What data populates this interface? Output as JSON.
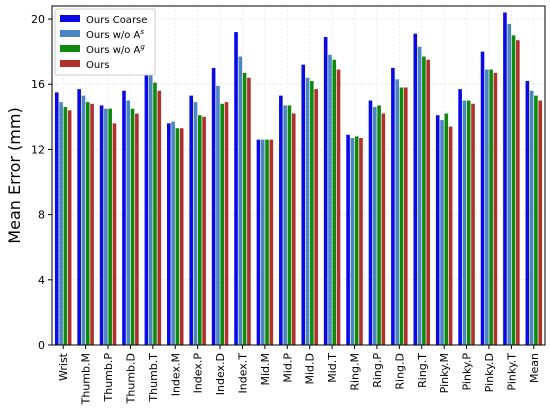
{
  "chart_data": {
    "type": "bar",
    "ylabel": "Mean Error (mm)",
    "xlabel": "",
    "ylim": [
      0,
      20.8
    ],
    "yticks": [
      0,
      4,
      8,
      12,
      16,
      20
    ],
    "grid": true,
    "legend_position": "top-left",
    "categories": [
      "Wrist",
      "Thumb.M",
      "Thumb.P",
      "Thumb.D",
      "Thumb.T",
      "Index.M",
      "Index.P",
      "Index.D",
      "Index.T",
      "Mid.M",
      "Mid.P",
      "Mid.D",
      "Mid.T",
      "Ring.M",
      "Ring.P",
      "Ring.D",
      "Ring.T",
      "Pinky.M",
      "Pinky.P",
      "Pinky.D",
      "Pinky.T",
      "Mean"
    ],
    "series": [
      {
        "name": "Ours Coarse",
        "name_base": "Ours Coarse",
        "name_sup": "",
        "color": "#0a0ae6",
        "values": [
          15.5,
          15.7,
          14.7,
          15.6,
          17.9,
          13.6,
          15.3,
          17.0,
          19.2,
          12.6,
          15.3,
          17.2,
          18.9,
          12.9,
          15.0,
          17.0,
          19.1,
          14.1,
          15.7,
          18.0,
          20.4,
          16.2
        ]
      },
      {
        "name": "Ours w/o A^s",
        "name_base": "Ours w/o A",
        "name_sup": "s",
        "color": "#4a86c0",
        "values": [
          14.9,
          15.3,
          14.5,
          15.0,
          17.0,
          13.7,
          14.9,
          15.9,
          17.7,
          12.6,
          14.7,
          16.4,
          17.8,
          12.7,
          14.6,
          16.3,
          18.3,
          13.8,
          15.0,
          16.9,
          19.7,
          15.6
        ]
      },
      {
        "name": "Ours w/o A^g",
        "name_base": "Ours w/o A",
        "name_sup": "g",
        "color": "#0f8a0f",
        "values": [
          14.6,
          14.9,
          14.5,
          14.5,
          16.1,
          13.3,
          14.1,
          14.8,
          16.7,
          12.6,
          14.7,
          16.2,
          17.5,
          12.8,
          14.7,
          15.8,
          17.7,
          14.2,
          15.0,
          16.9,
          19.0,
          15.3
        ]
      },
      {
        "name": "Ours",
        "name_base": "Ours",
        "name_sup": "",
        "color": "#b0302a",
        "values": [
          14.4,
          14.8,
          13.6,
          14.2,
          15.6,
          13.3,
          14.0,
          14.9,
          16.4,
          12.6,
          14.2,
          15.7,
          16.9,
          12.7,
          14.2,
          15.8,
          17.5,
          13.4,
          14.8,
          16.7,
          18.7,
          15.0
        ]
      }
    ]
  }
}
